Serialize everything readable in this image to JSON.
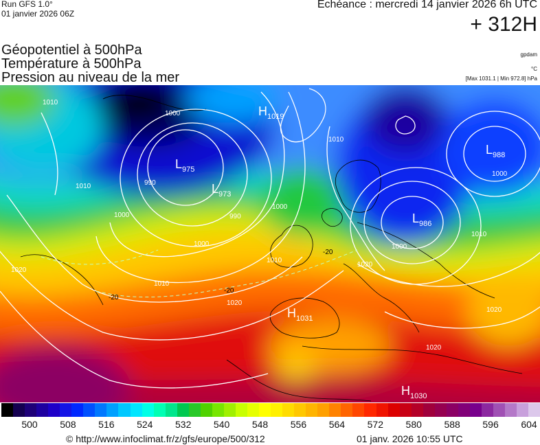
{
  "header": {
    "run": "Run GFS 1.0°",
    "run_date": "01 janvier 2026 06Z",
    "echeance": "Echéance : mercredi 14 janvier 2026 6h UTC",
    "hour": "+ 312H"
  },
  "variables": {
    "line1": "Géopotentiel à 500hPa",
    "line2": "Température à 500hPa",
    "line3": "Pression au niveau de la mer"
  },
  "units": {
    "geopot": "gpdam",
    "temp": "°C",
    "pressure": "[Max 1031.1 | Min 972.8] hPa"
  },
  "pressure_centers": [
    {
      "type": "H",
      "value": "1019",
      "name": "high-north-atlantic"
    },
    {
      "type": "L",
      "value": "975",
      "name": "low-atlantic-west"
    },
    {
      "type": "L",
      "value": "973",
      "name": "low-atlantic-east"
    },
    {
      "type": "L",
      "value": "986",
      "name": "low-scandinavia"
    },
    {
      "type": "L",
      "value": "988",
      "name": "low-russia"
    },
    {
      "type": "H",
      "value": "1031",
      "name": "high-iberia"
    },
    {
      "type": "H",
      "value": "1030",
      "name": "high-sahara"
    }
  ],
  "isobar_labels": [
    "1010",
    "1000",
    "990",
    "1000",
    "1010",
    "1020",
    "1020",
    "1000",
    "1010",
    "1000",
    "1010",
    "1020",
    "1020",
    "1010",
    "1020",
    "1000",
    "1010",
    "990",
    "1000"
  ],
  "temp_labels": [
    "-20",
    "-20",
    "-20"
  ],
  "colorbar": {
    "ticks": [
      "500",
      "508",
      "516",
      "524",
      "532",
      "540",
      "548",
      "556",
      "564",
      "572",
      "580",
      "588",
      "596",
      "604"
    ],
    "colors": [
      "#000000",
      "#140050",
      "#1e0078",
      "#1e00a0",
      "#1e00c8",
      "#1414e6",
      "#0028ff",
      "#0050ff",
      "#0078ff",
      "#00a0ff",
      "#00c8ff",
      "#00e6ff",
      "#00ffe6",
      "#00ffb4",
      "#00e68c",
      "#00c850",
      "#28c828",
      "#50d200",
      "#78e600",
      "#a0f000",
      "#c8ff00",
      "#e6ff00",
      "#ffff00",
      "#fff000",
      "#ffdc00",
      "#ffc800",
      "#ffb400",
      "#ffa000",
      "#ff8200",
      "#ff6400",
      "#ff4600",
      "#ff2800",
      "#f01400",
      "#dc0000",
      "#c80014",
      "#b40028",
      "#a0003c",
      "#960050",
      "#8c0064",
      "#820078",
      "#78008c",
      "#8c28a0",
      "#a050b4",
      "#b478c8",
      "#c8a0dc",
      "#dcc8eb"
    ]
  },
  "footer": {
    "url": "© http://www.infoclimat.fr/z/gfs/europe/500/312",
    "timestamp": "01 janv. 2026 10:55 UTC"
  }
}
